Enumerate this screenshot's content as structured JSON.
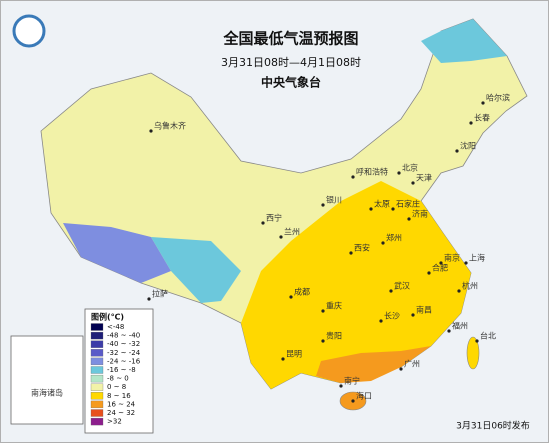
{
  "header": {
    "title": "全国最低气温预报图",
    "period": "3月31日08时—4月1日08时",
    "issuer": "中央气象台"
  },
  "legend": {
    "title": "图例(℃)",
    "items": [
      {
        "label": "<-48",
        "color": "#000050"
      },
      {
        "label": "-48 ~ -40",
        "color": "#1e1e78"
      },
      {
        "label": "-40 ~ -32",
        "color": "#3c3ca8"
      },
      {
        "label": "-32 ~ -24",
        "color": "#5a5ac8"
      },
      {
        "label": "-24 ~ -16",
        "color": "#7e8ee0"
      },
      {
        "label": "-16 ~ -8",
        "color": "#6cc8dc"
      },
      {
        "label": "-8 ~ 0",
        "color": "#b4e6c8"
      },
      {
        "label": "0 ~ 8",
        "color": "#f2f2a8"
      },
      {
        "label": "8 ~ 16",
        "color": "#ffd800"
      },
      {
        "label": "16 ~ 24",
        "color": "#f59a1e"
      },
      {
        "label": "24 ~ 32",
        "color": "#e8501e"
      },
      {
        "label": ">32",
        "color": "#8c1e8c"
      }
    ]
  },
  "cities": [
    "乌鲁木齐",
    "哈尔滨",
    "长春",
    "沈阳",
    "呼和浩特",
    "北京",
    "天津",
    "银川",
    "太原",
    "石家庄",
    "济南",
    "西宁",
    "兰州",
    "西安",
    "郑州",
    "合肥",
    "南京",
    "上海",
    "杭州",
    "武汉",
    "成都",
    "重庆",
    "长沙",
    "南昌",
    "福州",
    "拉萨",
    "贵阳",
    "昆明",
    "南宁",
    "广州",
    "台北",
    "海口"
  ],
  "inset": {
    "label": "南海诸岛"
  },
  "footer": {
    "issued": "3月31日06时发布"
  }
}
